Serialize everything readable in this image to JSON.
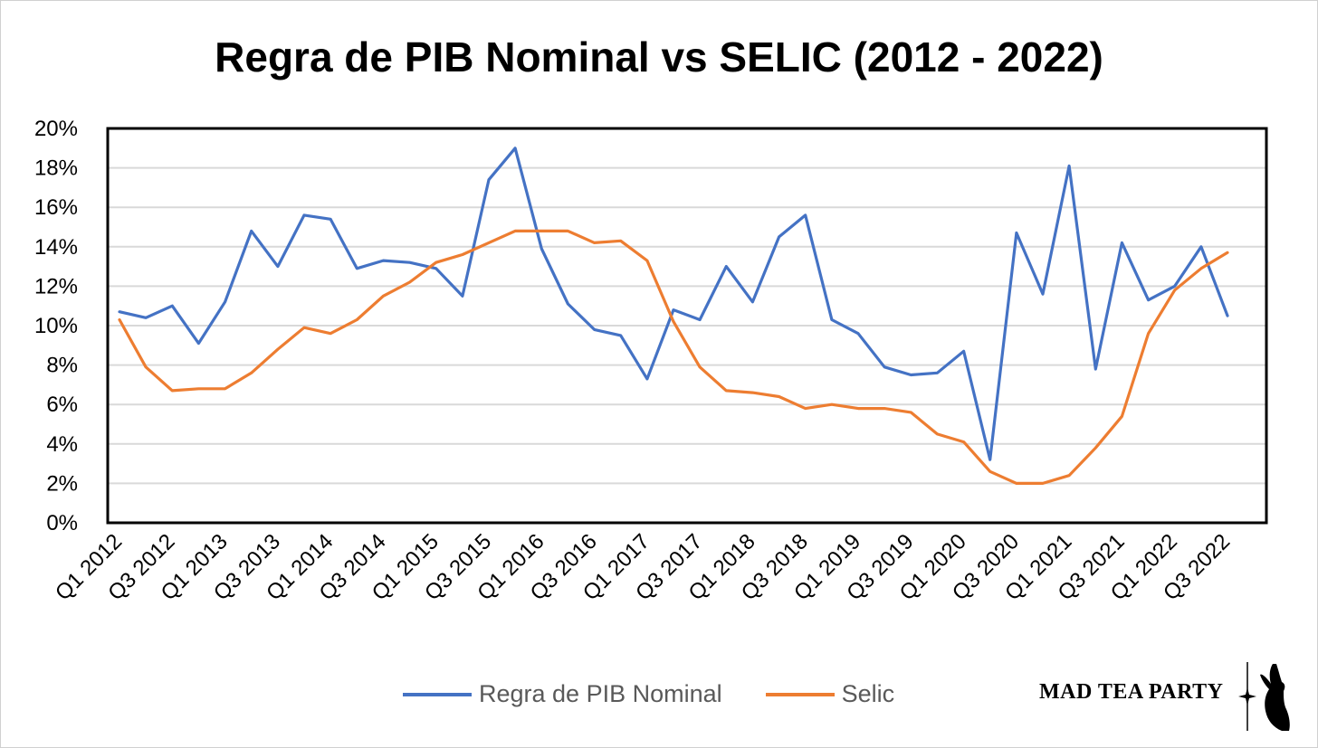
{
  "chart_data": {
    "type": "line",
    "title": "Regra de PIB Nominal vs SELIC (2012 - 2022)",
    "xlabel": "",
    "ylabel": "",
    "ylim": [
      0,
      20
    ],
    "y_ticks": [
      "0%",
      "2%",
      "4%",
      "6%",
      "8%",
      "10%",
      "12%",
      "14%",
      "16%",
      "18%",
      "20%"
    ],
    "grid": true,
    "legend_position": "bottom",
    "x_tick_labels": [
      "Q1 2012",
      "Q3 2012",
      "Q1 2013",
      "Q3 2013",
      "Q1 2014",
      "Q3 2014",
      "Q1 2015",
      "Q3 2015",
      "Q1 2016",
      "Q3 2016",
      "Q1 2017",
      "Q3 2017",
      "Q1 2018",
      "Q3 2018",
      "Q1 2019",
      "Q3 2019",
      "Q1 2020",
      "Q3 2020",
      "Q1 2021",
      "Q3 2021",
      "Q1 2022",
      "Q3 2022"
    ],
    "categories": [
      "Q1 2012",
      "Q2 2012",
      "Q3 2012",
      "Q4 2012",
      "Q1 2013",
      "Q2 2013",
      "Q3 2013",
      "Q4 2013",
      "Q1 2014",
      "Q2 2014",
      "Q3 2014",
      "Q4 2014",
      "Q1 2015",
      "Q2 2015",
      "Q3 2015",
      "Q4 2015",
      "Q1 2016",
      "Q2 2016",
      "Q3 2016",
      "Q4 2016",
      "Q1 2017",
      "Q2 2017",
      "Q3 2017",
      "Q4 2017",
      "Q1 2018",
      "Q2 2018",
      "Q3 2018",
      "Q4 2018",
      "Q1 2019",
      "Q2 2019",
      "Q3 2019",
      "Q4 2019",
      "Q1 2020",
      "Q2 2020",
      "Q3 2020",
      "Q4 2020",
      "Q1 2021",
      "Q2 2021",
      "Q3 2021",
      "Q4 2021",
      "Q1 2022",
      "Q2 2022",
      "Q3 2022"
    ],
    "series": [
      {
        "name": "Regra de PIB Nominal",
        "color": "#4472C4",
        "values": [
          10.7,
          10.4,
          11.0,
          9.1,
          11.2,
          14.8,
          13.0,
          15.6,
          15.4,
          12.9,
          13.3,
          13.2,
          12.9,
          11.5,
          17.4,
          19.0,
          13.9,
          11.1,
          9.8,
          9.5,
          7.3,
          10.8,
          10.3,
          13.0,
          11.2,
          14.5,
          15.6,
          10.3,
          9.6,
          7.9,
          7.5,
          7.6,
          8.7,
          3.2,
          14.7,
          11.6,
          18.1,
          7.8,
          14.2,
          11.3,
          12.0,
          14.0,
          10.5
        ]
      },
      {
        "name": "Selic",
        "color": "#ED7D31",
        "values": [
          10.3,
          7.9,
          6.7,
          6.8,
          6.8,
          7.6,
          8.8,
          9.9,
          9.6,
          10.3,
          11.5,
          12.2,
          13.2,
          13.6,
          14.2,
          14.8,
          14.8,
          14.8,
          14.2,
          14.3,
          13.3,
          10.2,
          7.9,
          6.7,
          6.6,
          6.4,
          5.8,
          6.0,
          5.8,
          5.8,
          5.6,
          4.5,
          4.1,
          2.6,
          2.0,
          2.0,
          2.4,
          3.8,
          5.4,
          9.6,
          11.8,
          12.9,
          13.7
        ]
      }
    ]
  },
  "branding": {
    "text": "MAD TEA PARTY",
    "logo_icon": "rabbit-silhouette-icon",
    "star_icon": "four-point-star-icon"
  }
}
